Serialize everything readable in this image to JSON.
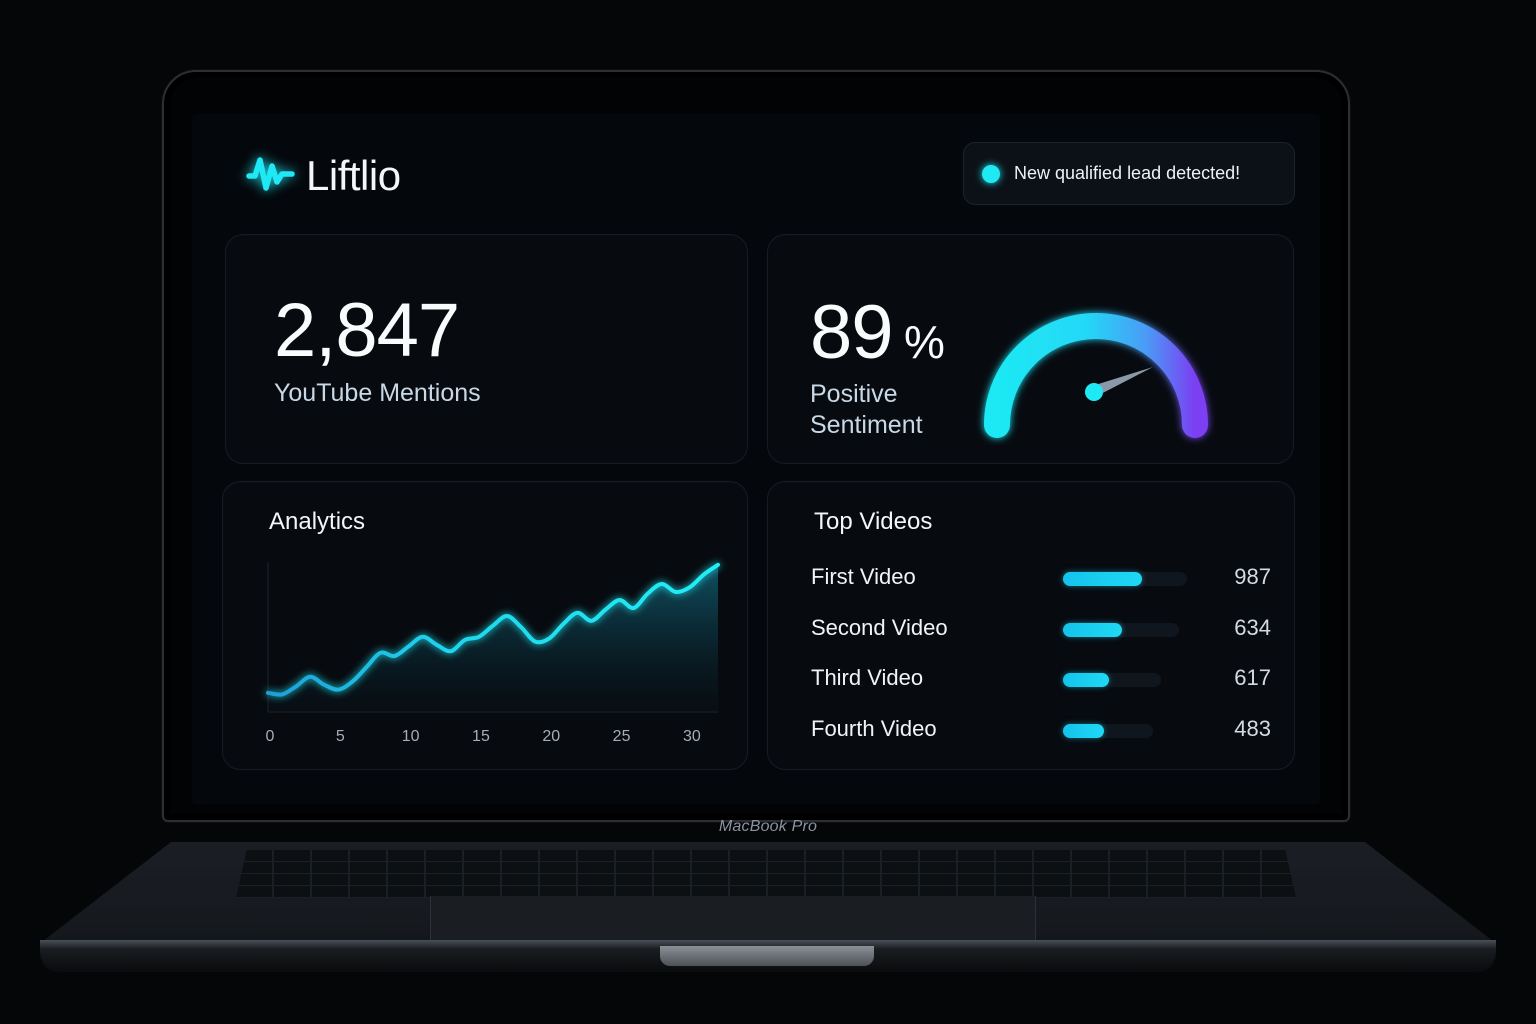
{
  "device": {
    "label": "MacBook Pro"
  },
  "app": {
    "name": "Liftlio",
    "logo_icon": "waveform-icon",
    "accent": "#1ee9f4"
  },
  "notification": {
    "text": "New qualified lead detected!",
    "dot_color": "#1ee9f4"
  },
  "mentions": {
    "value": "2,847",
    "label": "YouTube Mentions"
  },
  "sentiment": {
    "value": "89",
    "unit": "%",
    "label": "Positive Sentiment",
    "percent": 89,
    "gauge_colors": [
      "#1ee9f4",
      "#7b3ff2"
    ]
  },
  "analytics": {
    "title": "Analytics",
    "x_ticks": [
      "0",
      "5",
      "10",
      "15",
      "20",
      "25",
      "30"
    ]
  },
  "top_videos": {
    "title": "Top Videos",
    "items": [
      {
        "name": "First Video",
        "count": "987"
      },
      {
        "name": "Second Video",
        "count": "634"
      },
      {
        "name": "Third Video",
        "count": "617"
      },
      {
        "name": "Fourth Video",
        "count": "483"
      }
    ]
  },
  "chart_data": [
    {
      "type": "area",
      "title": "Analytics",
      "xlabel": "",
      "ylabel": "",
      "x": [
        0,
        1,
        2,
        3,
        4,
        5,
        6,
        7,
        8,
        9,
        10,
        11,
        12,
        13,
        14,
        15,
        16,
        17,
        18,
        19,
        20,
        21,
        22,
        23,
        24,
        25,
        26,
        27,
        28,
        29,
        30,
        31,
        32
      ],
      "values": [
        12,
        11,
        16,
        22,
        17,
        14,
        19,
        28,
        37,
        35,
        41,
        47,
        42,
        38,
        45,
        47,
        54,
        60,
        53,
        44,
        46,
        55,
        62,
        57,
        64,
        70,
        65,
        74,
        80,
        75,
        78,
        86,
        92
      ],
      "x_ticks": [
        0,
        5,
        10,
        15,
        20,
        25,
        30
      ],
      "xlim": [
        0,
        32
      ],
      "ylim": [
        0,
        100
      ],
      "grid": false,
      "y_ticks_visible": false,
      "color": "#1ee9f4"
    },
    {
      "type": "bar",
      "title": "Top Videos",
      "orientation": "horizontal",
      "categories": [
        "First Video",
        "Second Video",
        "Third Video",
        "Fourth Video"
      ],
      "values": [
        987,
        634,
        617,
        483
      ]
    },
    {
      "type": "gauge",
      "title": "Positive Sentiment",
      "value": 89,
      "unit": "%"
    }
  ]
}
